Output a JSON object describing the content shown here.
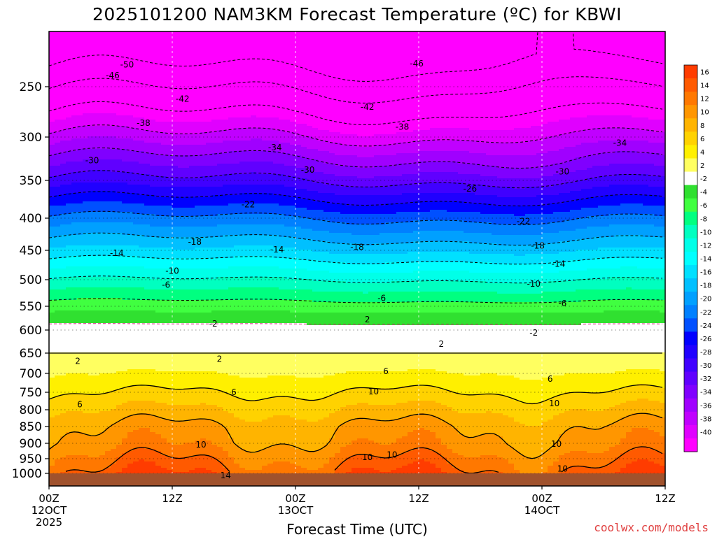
{
  "chart_data": {
    "type": "heatmap",
    "title": "2025101200 NAM3KM Forecast Temperature (ºC) for KBWI",
    "xlabel": "Forecast Time (UTC)",
    "ylabel": "",
    "credit": "coolwx.com/models",
    "x_ticks": [
      {
        "hour": 0,
        "lines": [
          "00Z",
          "12OCT",
          "2025"
        ]
      },
      {
        "hour": 12,
        "lines": [
          "12Z"
        ]
      },
      {
        "hour": 24,
        "lines": [
          "00Z",
          "13OCT"
        ]
      },
      {
        "hour": 36,
        "lines": [
          "12Z"
        ]
      },
      {
        "hour": 48,
        "lines": [
          "00Z",
          "14OCT"
        ]
      },
      {
        "hour": 60,
        "lines": [
          "12Z"
        ]
      }
    ],
    "xlim": [
      0,
      60
    ],
    "y_ticks": [
      "250",
      "300",
      "350",
      "400",
      "450",
      "500",
      "550",
      "600",
      "650",
      "700",
      "750",
      "800",
      "850",
      "900",
      "950",
      "1000"
    ],
    "y_tick_values": [
      250,
      300,
      350,
      400,
      450,
      500,
      550,
      600,
      650,
      700,
      750,
      800,
      850,
      900,
      950,
      1000
    ],
    "ylim_hpa": [
      200,
      1040
    ],
    "colorbar": {
      "labels": [
        "16",
        "14",
        "12",
        "10",
        "8",
        "6",
        "4",
        "2",
        "-2",
        "-4",
        "-6",
        "-8",
        "-10",
        "-12",
        "-14",
        "-16",
        "-18",
        "-20",
        "-22",
        "-24",
        "-26",
        "-28",
        "-30",
        "-32",
        "-34",
        "-36",
        "-38",
        "-40"
      ],
      "colors": [
        "#ff3c00",
        "#ff5a00",
        "#ff7800",
        "#ff9600",
        "#ffb400",
        "#ffd200",
        "#fff000",
        "#ffff60",
        "#ffffff",
        "#30e030",
        "#40ff40",
        "#00ff80",
        "#00ffc0",
        "#00ffe8",
        "#00ffff",
        "#00e0ff",
        "#00c0ff",
        "#00a0ff",
        "#0080ff",
        "#0050ff",
        "#0000ff",
        "#2000ff",
        "#4000ff",
        "#6000ff",
        "#8000ff",
        "#a000ff",
        "#c000ff",
        "#e000ff",
        "#ff00ff"
      ]
    },
    "profile": [
      {
        "p": 200,
        "t": -56
      },
      {
        "p": 250,
        "t": -47
      },
      {
        "p": 300,
        "t": -38
      },
      {
        "p": 350,
        "t": -30
      },
      {
        "p": 400,
        "t": -22
      },
      {
        "p": 450,
        "t": -16
      },
      {
        "p": 500,
        "t": -10
      },
      {
        "p": 550,
        "t": -5
      },
      {
        "p": 600,
        "t": -1
      },
      {
        "p": 650,
        "t": 2
      },
      {
        "p": 700,
        "t": 4
      },
      {
        "p": 750,
        "t": 6
      },
      {
        "p": 800,
        "t": 8
      },
      {
        "p": 850,
        "t": 10
      },
      {
        "p": 900,
        "t": 11
      },
      {
        "p": 950,
        "t": 13
      },
      {
        "p": 1000,
        "t": 15
      }
    ],
    "contour_labels": [
      {
        "text": "-50",
        "hour": 7.6,
        "p": 228
      },
      {
        "text": "-46",
        "hour": 6.2,
        "p": 239
      },
      {
        "text": "-46",
        "hour": 35.8,
        "p": 227
      },
      {
        "text": "-42",
        "hour": 13.0,
        "p": 262
      },
      {
        "text": "-42",
        "hour": 31.0,
        "p": 270
      },
      {
        "text": "-38",
        "hour": 9.2,
        "p": 286
      },
      {
        "text": "-38",
        "hour": 34.4,
        "p": 290
      },
      {
        "text": "-34",
        "hour": 22.0,
        "p": 312
      },
      {
        "text": "-34",
        "hour": 55.6,
        "p": 307
      },
      {
        "text": "-30",
        "hour": 4.2,
        "p": 327
      },
      {
        "text": "-30",
        "hour": 25.2,
        "p": 338
      },
      {
        "text": "-30",
        "hour": 50.0,
        "p": 340
      },
      {
        "text": "-26",
        "hour": 41.0,
        "p": 361
      },
      {
        "text": "-22",
        "hour": 19.4,
        "p": 382
      },
      {
        "text": "-22",
        "hour": 46.2,
        "p": 405
      },
      {
        "text": "-18",
        "hour": 14.2,
        "p": 437
      },
      {
        "text": "-18",
        "hour": 30.0,
        "p": 445
      },
      {
        "text": "-18",
        "hour": 47.6,
        "p": 443
      },
      {
        "text": "-14",
        "hour": 6.6,
        "p": 455
      },
      {
        "text": "-14",
        "hour": 22.2,
        "p": 449
      },
      {
        "text": "-14",
        "hour": 49.6,
        "p": 473
      },
      {
        "text": "-10",
        "hour": 12.0,
        "p": 485
      },
      {
        "text": "-10",
        "hour": 47.2,
        "p": 508
      },
      {
        "text": "-6",
        "hour": 11.4,
        "p": 510
      },
      {
        "text": "-6",
        "hour": 32.4,
        "p": 535
      },
      {
        "text": "-6",
        "hour": 50.0,
        "p": 545
      },
      {
        "text": "-2",
        "hour": 16.0,
        "p": 587
      },
      {
        "text": "2",
        "hour": 31.0,
        "p": 578
      },
      {
        "text": "-2",
        "hour": 47.2,
        "p": 606
      },
      {
        "text": "2",
        "hour": 38.2,
        "p": 630
      },
      {
        "text": "2",
        "hour": 16.6,
        "p": 665
      },
      {
        "text": "2",
        "hour": 2.8,
        "p": 670
      },
      {
        "text": "6",
        "hour": 32.8,
        "p": 695
      },
      {
        "text": "6",
        "hour": 48.8,
        "p": 715
      },
      {
        "text": "6",
        "hour": 18.0,
        "p": 750
      },
      {
        "text": "10",
        "hour": 31.6,
        "p": 748
      },
      {
        "text": "10",
        "hour": 49.2,
        "p": 782
      },
      {
        "text": "6",
        "hour": 3.0,
        "p": 785
      },
      {
        "text": "10",
        "hour": 14.8,
        "p": 905
      },
      {
        "text": "10",
        "hour": 49.4,
        "p": 902
      },
      {
        "text": "10",
        "hour": 31.0,
        "p": 945
      },
      {
        "text": "10",
        "hour": 33.4,
        "p": 938
      },
      {
        "text": "10",
        "hour": 50.0,
        "p": 985
      },
      {
        "text": "14",
        "hour": 17.2,
        "p": 1007
      }
    ]
  }
}
